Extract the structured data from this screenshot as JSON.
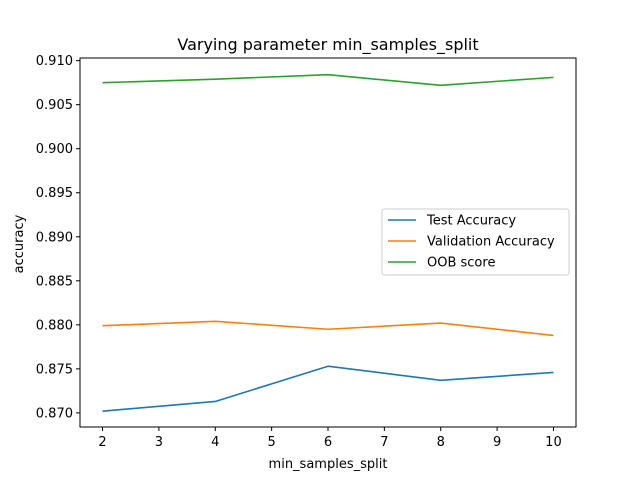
{
  "chart_data": {
    "type": "line",
    "title": "Varying parameter min_samples_split",
    "xlabel": "min_samples_split",
    "ylabel": "accuracy",
    "x": [
      2,
      4,
      6,
      8,
      10
    ],
    "xlim": [
      1.6,
      10.4
    ],
    "ylim": [
      0.8684,
      0.9103
    ],
    "xticks": [
      "2",
      "3",
      "4",
      "5",
      "6",
      "7",
      "8",
      "9",
      "10"
    ],
    "yticks": [
      "0.870",
      "0.875",
      "0.880",
      "0.885",
      "0.890",
      "0.895",
      "0.900",
      "0.905",
      "0.910"
    ],
    "grid": false,
    "legend_position": "center-right",
    "series": [
      {
        "name": "Test Accuracy",
        "color": "#1f77b4",
        "values": [
          0.8702,
          0.8713,
          0.8753,
          0.8737,
          0.8746
        ]
      },
      {
        "name": "Validation Accuracy",
        "color": "#ff7f0e",
        "values": [
          0.8799,
          0.8804,
          0.8795,
          0.8802,
          0.8788
        ]
      },
      {
        "name": "OOB score",
        "color": "#2ca02c",
        "values": [
          0.9075,
          0.9079,
          0.9084,
          0.9072,
          0.9081
        ]
      }
    ]
  }
}
